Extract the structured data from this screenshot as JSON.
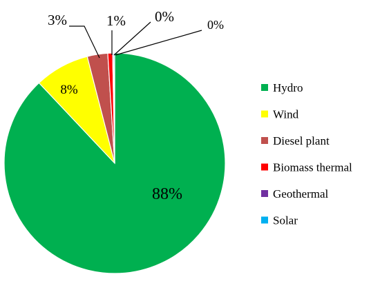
{
  "chart_data": {
    "type": "pie",
    "title": "",
    "legend_position": "right",
    "slices": [
      {
        "name": "Hydro",
        "value": 88,
        "label": "88%",
        "color": "#00b050"
      },
      {
        "name": "Wind",
        "value": 8,
        "label": "8%",
        "color": "#ffff00"
      },
      {
        "name": "Diesel plant",
        "value": 3,
        "label": "3%",
        "color": "#c0504d"
      },
      {
        "name": "Biomass thermal",
        "value": 0.7,
        "label": "1%",
        "color": "#ff0000"
      },
      {
        "name": "Geothermal",
        "value": 0.15,
        "label": "0%",
        "color": "#7030a0"
      },
      {
        "name": "Solar",
        "value": 0.15,
        "label": "0%",
        "color": "#00b0f0"
      }
    ]
  }
}
